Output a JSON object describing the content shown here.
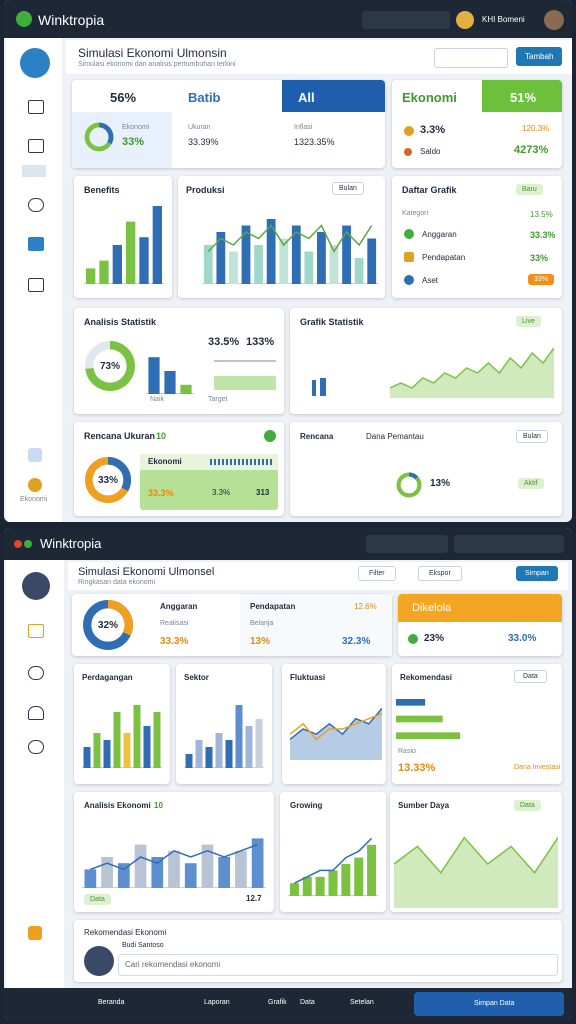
{
  "top": {
    "app_name": "Winktropia",
    "user_name": "KHI Bomeni",
    "title": "Simulasi Ekonomi Ulmonsin",
    "subtitle": "Simulasi ekonomi dan analisis pertumbuhan terkini",
    "action_button": "Tambah",
    "summary": {
      "tabs": [
        "56%",
        "Batib",
        "All"
      ],
      "donut_label": "Ekonomi",
      "donut_value": "33%",
      "metric_1_label": "Ukuran",
      "metric_1": "33.39%",
      "metric_2_label": "Inflasi",
      "metric_2": "1323.35%"
    },
    "economy": {
      "title": "Ekonomi",
      "badge": "51%",
      "value_1": "3.3%",
      "label_2": "Saldo",
      "value_2": "120.3%",
      "value_3": "4273%"
    },
    "benefits": {
      "title": "Benefits"
    },
    "production": {
      "title": "Produksi",
      "filter": "Bulan"
    },
    "chart_list": {
      "title": "Daftar Grafik",
      "badge": "Baru",
      "rows": [
        [
          "Kategori",
          "13.5%"
        ],
        [
          "Anggaran",
          "33.3%"
        ],
        [
          "Pendapatan",
          "33%"
        ],
        [
          "Aset",
          "33%"
        ]
      ]
    },
    "stats": {
      "title": "Analisis Statistik",
      "value_1": "33.5%",
      "value_2": "133%",
      "bar_label": "Naik",
      "progress_label": "Target"
    },
    "graph": {
      "title": "Grafik Statistik",
      "badge": "Live"
    },
    "plan": {
      "title": "Rencana Ukuran",
      "badge": "10",
      "box_title": "Ekonomi",
      "box_value_1": "33.3%",
      "box_value_2": "3.3%",
      "box_value_3": "313"
    },
    "monitor": {
      "title": "Rencana",
      "subtitle": "Dana Pemantau",
      "filter": "Bulan",
      "value": "13%",
      "badge": "Aktif"
    },
    "sidebar_label": "Ekonomi",
    "charts": [
      {
        "type": "bar",
        "values": [
          2,
          3,
          5,
          8,
          6,
          10
        ],
        "ylim": [
          0,
          10
        ],
        "colors": [
          "#7cc242",
          "#7cc242",
          "#2f6db5",
          "#7cc242",
          "#2f6db5",
          "#2f6db5"
        ]
      },
      {
        "type": "bar",
        "values": [
          6,
          8,
          5,
          9,
          6,
          10,
          7,
          9,
          5,
          8,
          6,
          9,
          4,
          7
        ],
        "ylim": [
          0,
          12
        ],
        "colors": [
          "#9fd8c8",
          "#2f6db5",
          "#bfe3d6",
          "#2f6db5"
        ],
        "line": [
          5,
          7,
          6,
          8,
          7,
          9,
          6,
          8,
          7,
          9,
          5,
          8,
          6,
          9
        ],
        "line_color": "#5aa83c"
      },
      {
        "type": "donut",
        "values": [
          33
        ],
        "max": 100,
        "color": "#2f6db5",
        "track": "#7cc242"
      },
      {
        "type": "donut",
        "values": [
          73
        ],
        "max": 100,
        "color": "#7cc242",
        "track": "#dfe8f0",
        "value_labels": [
          "73%"
        ]
      },
      {
        "type": "bar",
        "values": [
          8,
          5,
          2
        ],
        "ylim": [
          0,
          10
        ],
        "colors": [
          "#2f6db5",
          "#2f6db5",
          "#7cc242"
        ]
      },
      {
        "type": "area",
        "values": [
          2,
          3,
          2,
          4,
          3,
          5,
          4,
          6,
          5,
          7,
          5,
          8,
          6,
          9,
          7,
          10
        ],
        "ylim": [
          0,
          12
        ],
        "color": "#7cc242"
      },
      {
        "type": "donut",
        "values": [
          33
        ],
        "max": 100,
        "color": "#2f6db5",
        "track": "#f0a020",
        "value_labels": [
          "33%"
        ]
      },
      {
        "type": "donut",
        "values": [
          13
        ],
        "max": 100,
        "color": "#2f6db5",
        "track": "#7cc242"
      }
    ]
  },
  "bottom": {
    "app_name": "Winktropia",
    "title": "Simulasi Ekonomi Ulmonsel",
    "subtitle": "Ringkasan data ekonomi",
    "buttons": [
      "Filter",
      "Ekspor",
      "Simpan"
    ],
    "summary": {
      "col_1_title": "Anggaran",
      "col_1_label": "Realisasi",
      "col_1_value": "33.3%",
      "col_2_title": "Pendapatan",
      "col_2_label": "Belanja",
      "col_2_value": "13%",
      "col_3_value_1": "12.6%",
      "col_3_value_2": "32.3%"
    },
    "managed": {
      "title": "Dikelola",
      "value_1": "23%",
      "value_2": "33.0%"
    },
    "cards": [
      {
        "title": "Perdagangan"
      },
      {
        "title": "Sektor"
      },
      {
        "title": "Fluktuasi"
      }
    ],
    "recommendation": {
      "title": "Rekomendasi",
      "filter": "Data",
      "label": "Rasio",
      "value": "13.33%",
      "note": "Dana Investasi"
    },
    "analysis": {
      "title": "Analisis Ekonomi",
      "badge": "10",
      "legend": "Data",
      "value": "12.7"
    },
    "growth": {
      "title": "Growing"
    },
    "resources": {
      "title": "Sumber Daya",
      "filter": "Data"
    },
    "assistant": {
      "title": "Rekomendasi Ekonomi",
      "name": "Budi Santoso",
      "placeholder": "Cari rekomendasi ekonomi"
    },
    "footer": {
      "items": [
        "Beranda",
        "Laporan",
        "Grafik",
        "Data",
        "Setelan"
      ],
      "button": "Simpan Data"
    },
    "charts": [
      {
        "type": "donut",
        "values": [
          32
        ],
        "max": 100,
        "color": "#f0a020",
        "track": "#2f6db5",
        "value_labels": [
          "32%"
        ]
      },
      {
        "type": "bar",
        "values": [
          3,
          5,
          4,
          8,
          5,
          9,
          6,
          8
        ],
        "ylim": [
          0,
          10
        ],
        "colors": [
          "#2f6db5",
          "#7cc242",
          "#2f6db5",
          "#7cc242",
          "#f0c040",
          "#7cc242",
          "#2f6db5",
          "#7cc242"
        ]
      },
      {
        "type": "bar",
        "values": [
          2,
          4,
          3,
          5,
          4,
          9,
          6,
          7
        ],
        "ylim": [
          0,
          10
        ],
        "colors": [
          "#2f6db5",
          "#9fb4d8",
          "#2f6db5",
          "#9fb4d8",
          "#2f6db5",
          "#5b8fd0",
          "#9fb4d8",
          "#c8d0dc"
        ]
      },
      {
        "type": "area",
        "values": [
          4,
          6,
          5,
          7,
          5,
          8,
          7,
          10
        ],
        "ylim": [
          0,
          12
        ],
        "color": "#2f6db5",
        "line": [
          5,
          7,
          4,
          6,
          6,
          7,
          8,
          9
        ],
        "line_color": "#f0a020"
      },
      {
        "type": "hbar",
        "values": [
          5,
          8,
          11
        ],
        "xlim": [
          0,
          12
        ],
        "colors": [
          "#2f6db5",
          "#7cc242",
          "#7cc242"
        ]
      },
      {
        "type": "bar",
        "values": [
          3,
          5,
          4,
          7,
          5,
          6,
          4,
          7,
          5,
          6,
          8
        ],
        "ylim": [
          0,
          10
        ],
        "colors": [
          "#5b8fd0",
          "#b8c4d4"
        ],
        "line": [
          3,
          4,
          3,
          5,
          4,
          6,
          5,
          6,
          5,
          6,
          7
        ],
        "line_color": "#2f6db5"
      },
      {
        "type": "bar",
        "values": [
          2,
          3,
          3,
          4,
          5,
          6,
          8
        ],
        "ylim": [
          0,
          10
        ],
        "colors": [
          "#7cc242"
        ],
        "line": [
          2,
          3,
          4,
          4,
          6,
          7,
          9
        ],
        "line_color": "#2f6db5"
      },
      {
        "type": "area",
        "values": [
          5,
          7,
          4,
          8,
          5,
          7,
          4,
          8
        ],
        "ylim": [
          0,
          10
        ],
        "color": "#7cc242"
      }
    ]
  }
}
